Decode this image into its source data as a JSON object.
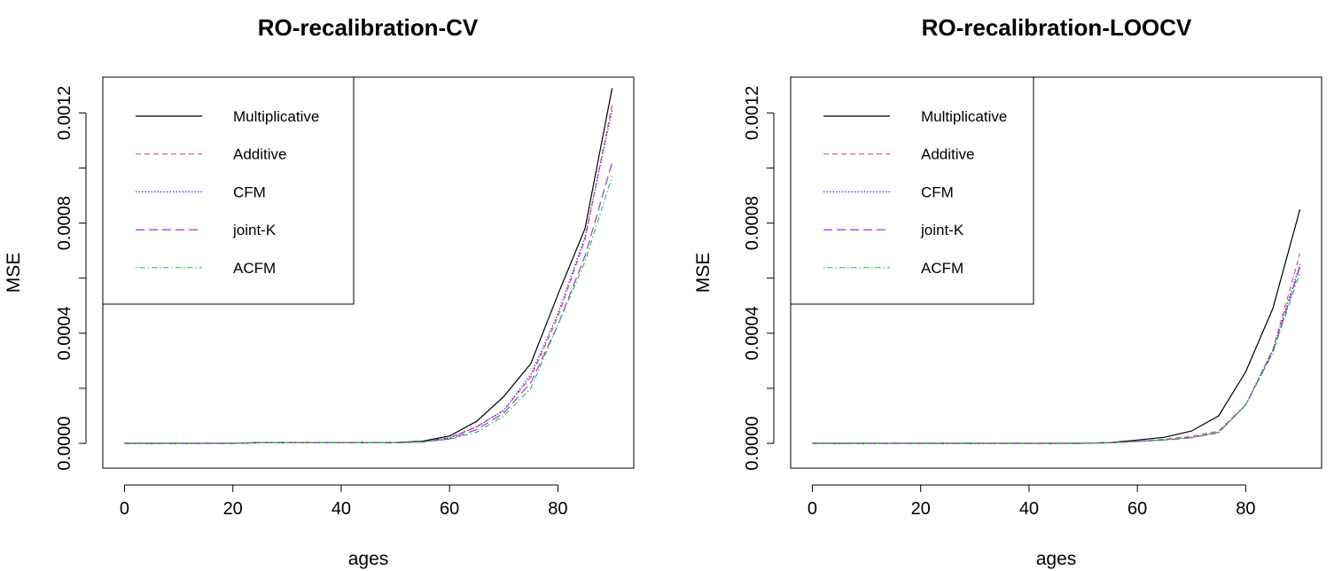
{
  "chart_data": [
    {
      "type": "line",
      "title": "RO-recalibration-CV",
      "xlabel": "ages",
      "ylabel": "MSE",
      "xlim": [
        -4,
        94
      ],
      "ylim": [
        -9e-05,
        0.00133
      ],
      "x_ticks": [
        0,
        20,
        40,
        60,
        80
      ],
      "x_tick_labels": [
        "0",
        "20",
        "40",
        "60",
        "80"
      ],
      "y_ticks": [
        0,
        0.0002,
        0.0004,
        0.0006,
        0.0008,
        0.001,
        0.0012
      ],
      "y_tick_labels": [
        "0.0000",
        "",
        "0.0004",
        "",
        "0.0008",
        "",
        "0.0012"
      ],
      "grid": false,
      "legend_position": "top-left",
      "x": [
        0,
        5,
        10,
        15,
        20,
        25,
        30,
        35,
        40,
        45,
        50,
        55,
        60,
        65,
        70,
        75,
        80,
        85,
        90
      ],
      "series": [
        {
          "name": "Multiplicative",
          "color": "#000000",
          "dash": "",
          "values": [
            0,
            0,
            0,
            0,
            0,
            3e-06,
            3e-06,
            3e-06,
            3e-06,
            3e-06,
            3e-06,
            8e-06,
            2.7e-05,
            8e-05,
            0.00017,
            0.00029,
            0.00054,
            0.00078,
            0.00129
          ]
        },
        {
          "name": "Additive",
          "color": "#df536b",
          "dash": "6,4",
          "values": [
            0,
            0,
            0,
            0,
            0,
            2e-06,
            2e-06,
            2e-06,
            2e-06,
            2e-06,
            2e-06,
            6e-06,
            2e-05,
            6e-05,
            0.00012,
            0.00024,
            0.00046,
            0.00074,
            0.00123
          ]
        },
        {
          "name": "CFM",
          "color": "#2a2aff",
          "dash": "1.5,2",
          "values": [
            0,
            0,
            0,
            0,
            0,
            2e-06,
            2e-06,
            2e-06,
            2e-06,
            2e-06,
            2e-06,
            6e-06,
            2e-05,
            6e-05,
            0.00012,
            0.00025,
            0.00047,
            0.00075,
            0.00121
          ]
        },
        {
          "name": "joint-K",
          "color": "#9d33e0",
          "dash": "10,5",
          "values": [
            0,
            0,
            0,
            0,
            0,
            2e-06,
            2e-06,
            2e-06,
            2e-06,
            2e-06,
            2e-06,
            5e-06,
            1.6e-05,
            5e-05,
            0.00011,
            0.00022,
            0.00043,
            0.00068,
            0.00102
          ]
        },
        {
          "name": "ACFM",
          "color": "#22cc44",
          "dash": "1.5,3,6,3",
          "values": [
            0,
            0,
            0,
            0,
            0,
            2e-06,
            2e-06,
            2e-06,
            2e-06,
            2e-06,
            2e-06,
            5e-06,
            1.5e-05,
            4e-05,
            0.0001,
            0.0002,
            0.00043,
            0.00066,
            0.00097
          ]
        }
      ]
    },
    {
      "type": "line",
      "title": "RO-recalibration-LOOCV",
      "xlabel": "ages",
      "ylabel": "MSE",
      "xlim": [
        -4,
        94
      ],
      "ylim": [
        -9e-05,
        0.00133
      ],
      "x_ticks": [
        0,
        20,
        40,
        60,
        80
      ],
      "x_tick_labels": [
        "0",
        "20",
        "40",
        "60",
        "80"
      ],
      "y_ticks": [
        0,
        0.0002,
        0.0004,
        0.0006,
        0.0008,
        0.001,
        0.0012
      ],
      "y_tick_labels": [
        "0.0000",
        "",
        "0.0004",
        "",
        "0.0008",
        "",
        "0.0012"
      ],
      "grid": false,
      "legend_position": "top-left",
      "x": [
        0,
        5,
        10,
        15,
        20,
        25,
        30,
        35,
        40,
        45,
        50,
        55,
        60,
        65,
        70,
        75,
        80,
        85,
        90
      ],
      "series": [
        {
          "name": "Multiplicative",
          "color": "#000000",
          "dash": "",
          "values": [
            0,
            0,
            0,
            0,
            0,
            0,
            0,
            0,
            0,
            0,
            0,
            3e-06,
            1.2e-05,
            2.2e-05,
            4.5e-05,
            0.0001,
            0.00026,
            0.00049,
            0.00085
          ]
        },
        {
          "name": "Additive",
          "color": "#df536b",
          "dash": "6,4",
          "values": [
            0,
            0,
            0,
            0,
            0,
            0,
            0,
            0,
            0,
            0,
            0,
            2e-06,
            8e-06,
            1.5e-05,
            2.5e-05,
            4.5e-05,
            0.00014,
            0.00034,
            0.00069
          ]
        },
        {
          "name": "CFM",
          "color": "#2a2aff",
          "dash": "1.5,2",
          "values": [
            0,
            0,
            0,
            0,
            0,
            0,
            0,
            0,
            0,
            0,
            0,
            2e-06,
            7e-06,
            1.3e-05,
            2.2e-05,
            4e-05,
            0.00014,
            0.00034,
            0.00065
          ]
        },
        {
          "name": "joint-K",
          "color": "#9d33e0",
          "dash": "10,5",
          "values": [
            0,
            0,
            0,
            0,
            0,
            0,
            0,
            0,
            0,
            0,
            0,
            2e-06,
            7e-06,
            1.2e-05,
            2e-05,
            4e-05,
            0.00014,
            0.00033,
            0.00064
          ]
        },
        {
          "name": "ACFM",
          "color": "#22cc44",
          "dash": "1.5,3,6,3",
          "values": [
            0,
            0,
            0,
            0,
            0,
            0,
            0,
            0,
            0,
            0,
            0,
            2e-06,
            7e-06,
            1.2e-05,
            2e-05,
            3.8e-05,
            0.00014,
            0.00033,
            0.00062
          ]
        }
      ]
    }
  ]
}
